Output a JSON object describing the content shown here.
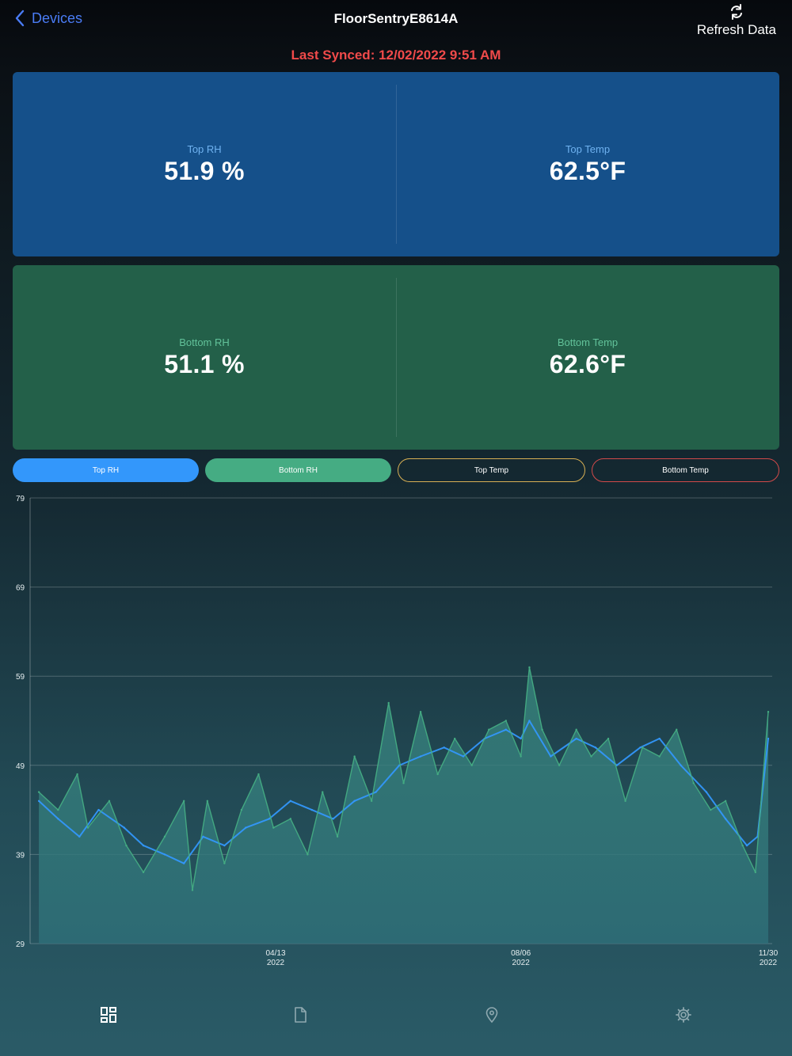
{
  "nav": {
    "back_label": "Devices",
    "title": "FloorSentryE8614A",
    "refresh_label": "Refresh Data"
  },
  "sync": {
    "text": "Last Synced: 12/02/2022 9:51 AM"
  },
  "readings": {
    "top_rh": {
      "label": "Top RH",
      "value": "51.9 %"
    },
    "top_temp": {
      "label": "Top Temp",
      "value": "62.5°F"
    },
    "bottom_rh": {
      "label": "Bottom RH",
      "value": "51.1 %"
    },
    "bottom_temp": {
      "label": "Bottom Temp",
      "value": "62.6°F"
    }
  },
  "filters": [
    {
      "label": "Top RH",
      "active": true
    },
    {
      "label": "Bottom RH",
      "active": true
    },
    {
      "label": "Top Temp",
      "active": false
    },
    {
      "label": "Bottom Temp",
      "active": false
    }
  ],
  "colors": {
    "top_rh": "#3397fb",
    "bottom_rh": "#45ac83",
    "top_temp": "#d8b054",
    "bottom_temp": "#d24a4a",
    "sync_text": "#f04a4a",
    "accent": "#4a7cf5"
  },
  "chart_data": {
    "type": "area",
    "ylim": [
      29,
      79
    ],
    "yticks": [
      79,
      69,
      59,
      49,
      39,
      29
    ],
    "grid": true,
    "xticks": [
      {
        "date": "2022-04-13",
        "label": [
          "04/13",
          "2022"
        ]
      },
      {
        "date": "2022-08-06",
        "label": [
          "08/06",
          "2022"
        ]
      },
      {
        "date": "2022-11-30",
        "label": [
          "11/30",
          "2022"
        ]
      }
    ],
    "series": [
      {
        "key": "top_rh",
        "points": [
          [
            "2021-12-23",
            45
          ],
          [
            "2022-01-01",
            43
          ],
          [
            "2022-01-11",
            41
          ],
          [
            "2022-01-20",
            44
          ],
          [
            "2022-02-01",
            42
          ],
          [
            "2022-02-10",
            40
          ],
          [
            "2022-02-20",
            39
          ],
          [
            "2022-03-01",
            38
          ],
          [
            "2022-03-10",
            41
          ],
          [
            "2022-03-20",
            40
          ],
          [
            "2022-03-30",
            42
          ],
          [
            "2022-04-10",
            43
          ],
          [
            "2022-04-20",
            45
          ],
          [
            "2022-04-30",
            44
          ],
          [
            "2022-05-10",
            43
          ],
          [
            "2022-05-20",
            45
          ],
          [
            "2022-05-30",
            46
          ],
          [
            "2022-06-10",
            49
          ],
          [
            "2022-06-20",
            50
          ],
          [
            "2022-07-01",
            51
          ],
          [
            "2022-07-10",
            50
          ],
          [
            "2022-07-20",
            52
          ],
          [
            "2022-07-30",
            53
          ],
          [
            "2022-08-06",
            52
          ],
          [
            "2022-08-10",
            54
          ],
          [
            "2022-08-20",
            50
          ],
          [
            "2022-09-01",
            52
          ],
          [
            "2022-09-10",
            51
          ],
          [
            "2022-09-20",
            49
          ],
          [
            "2022-10-01",
            51
          ],
          [
            "2022-10-10",
            52
          ],
          [
            "2022-10-20",
            49
          ],
          [
            "2022-11-01",
            46
          ],
          [
            "2022-11-10",
            43
          ],
          [
            "2022-11-20",
            40
          ],
          [
            "2022-11-25",
            41
          ],
          [
            "2022-11-30",
            52
          ]
        ]
      },
      {
        "key": "bottom_rh",
        "points": [
          [
            "2021-12-23",
            46
          ],
          [
            "2022-01-01",
            44
          ],
          [
            "2022-01-10",
            48
          ],
          [
            "2022-01-15",
            42
          ],
          [
            "2022-01-25",
            45
          ],
          [
            "2022-02-02",
            40
          ],
          [
            "2022-02-10",
            37
          ],
          [
            "2022-02-20",
            41
          ],
          [
            "2022-03-01",
            45
          ],
          [
            "2022-03-05",
            35
          ],
          [
            "2022-03-12",
            45
          ],
          [
            "2022-03-20",
            38
          ],
          [
            "2022-03-28",
            44
          ],
          [
            "2022-04-05",
            48
          ],
          [
            "2022-04-12",
            42
          ],
          [
            "2022-04-20",
            43
          ],
          [
            "2022-04-28",
            39
          ],
          [
            "2022-05-05",
            46
          ],
          [
            "2022-05-12",
            41
          ],
          [
            "2022-05-20",
            50
          ],
          [
            "2022-05-28",
            45
          ],
          [
            "2022-06-05",
            56
          ],
          [
            "2022-06-12",
            47
          ],
          [
            "2022-06-20",
            55
          ],
          [
            "2022-06-28",
            48
          ],
          [
            "2022-07-06",
            52
          ],
          [
            "2022-07-14",
            49
          ],
          [
            "2022-07-22",
            53
          ],
          [
            "2022-07-30",
            54
          ],
          [
            "2022-08-06",
            50
          ],
          [
            "2022-08-10",
            60
          ],
          [
            "2022-08-16",
            53
          ],
          [
            "2022-08-24",
            49
          ],
          [
            "2022-09-01",
            53
          ],
          [
            "2022-09-08",
            50
          ],
          [
            "2022-09-16",
            52
          ],
          [
            "2022-09-24",
            45
          ],
          [
            "2022-10-02",
            51
          ],
          [
            "2022-10-10",
            50
          ],
          [
            "2022-10-18",
            53
          ],
          [
            "2022-10-26",
            47
          ],
          [
            "2022-11-03",
            44
          ],
          [
            "2022-11-10",
            45
          ],
          [
            "2022-11-18",
            40
          ],
          [
            "2022-11-24",
            37
          ],
          [
            "2022-11-30",
            55
          ]
        ]
      }
    ]
  },
  "tabs": [
    {
      "icon": "dashboard-icon",
      "active": true
    },
    {
      "icon": "document-icon",
      "active": false
    },
    {
      "icon": "location-pin-icon",
      "active": false
    },
    {
      "icon": "gear-icon",
      "active": false
    }
  ]
}
